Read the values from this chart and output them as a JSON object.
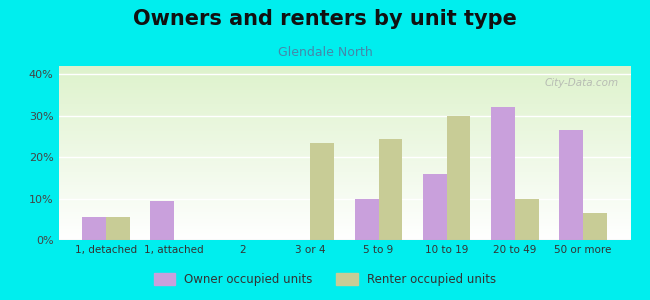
{
  "title": "Owners and renters by unit type",
  "subtitle": "Glendale North",
  "categories": [
    "1, detached",
    "1, attached",
    "2",
    "3 or 4",
    "5 to 9",
    "10 to 19",
    "20 to 49",
    "50 or more"
  ],
  "owner_values": [
    5.5,
    9.5,
    0,
    0,
    10,
    16,
    32,
    26.5
  ],
  "renter_values": [
    5.5,
    0,
    0,
    23.5,
    24.5,
    30,
    10,
    6.5
  ],
  "owner_color": "#c9a0dc",
  "renter_color": "#c8cc96",
  "background_color": "#00eeee",
  "yticks": [
    0,
    10,
    20,
    30,
    40
  ],
  "ylim": [
    0,
    42
  ],
  "bar_width": 0.35,
  "title_fontsize": 15,
  "subtitle_fontsize": 9,
  "legend_label_owner": "Owner occupied units",
  "legend_label_renter": "Renter occupied units"
}
